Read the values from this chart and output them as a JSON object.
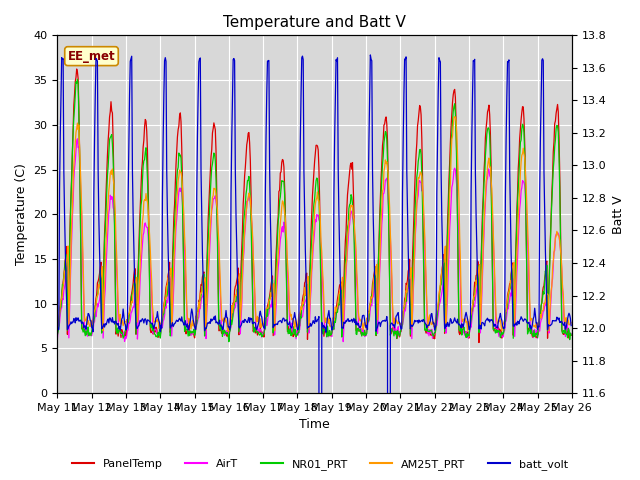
{
  "title": "Temperature and Batt V",
  "xlabel": "Time",
  "ylabel_left": "Temperature (C)",
  "ylabel_right": "Batt V",
  "annotation": "EE_met",
  "xlim_start": 0,
  "xlim_end": 360,
  "ylim_left": [
    0,
    40
  ],
  "ylim_right": [
    11.6,
    13.8
  ],
  "x_tick_labels": [
    "May 11",
    "May 12",
    "May 13",
    "May 14",
    "May 15",
    "May 16",
    "May 17",
    "May 18",
    "May 19",
    "May 20",
    "May 21",
    "May 22",
    "May 23",
    "May 24",
    "May 25",
    "May 26"
  ],
  "x_tick_positions": [
    0,
    24,
    48,
    72,
    96,
    120,
    144,
    168,
    192,
    216,
    240,
    264,
    288,
    312,
    336,
    360
  ],
  "colors": {
    "PanelTemp": "#dd0000",
    "AirT": "#ff00ff",
    "NR01_PRT": "#00cc00",
    "AM25T_PRT": "#ff9900",
    "batt_volt": "#0000cc"
  },
  "legend_labels": [
    "PanelTemp",
    "AirT",
    "NR01_PRT",
    "AM25T_PRT",
    "batt_volt"
  ],
  "background_color": "#d8d8d8",
  "fig_background": "#ffffff",
  "title_fontsize": 11,
  "axis_fontsize": 9,
  "tick_fontsize": 8
}
